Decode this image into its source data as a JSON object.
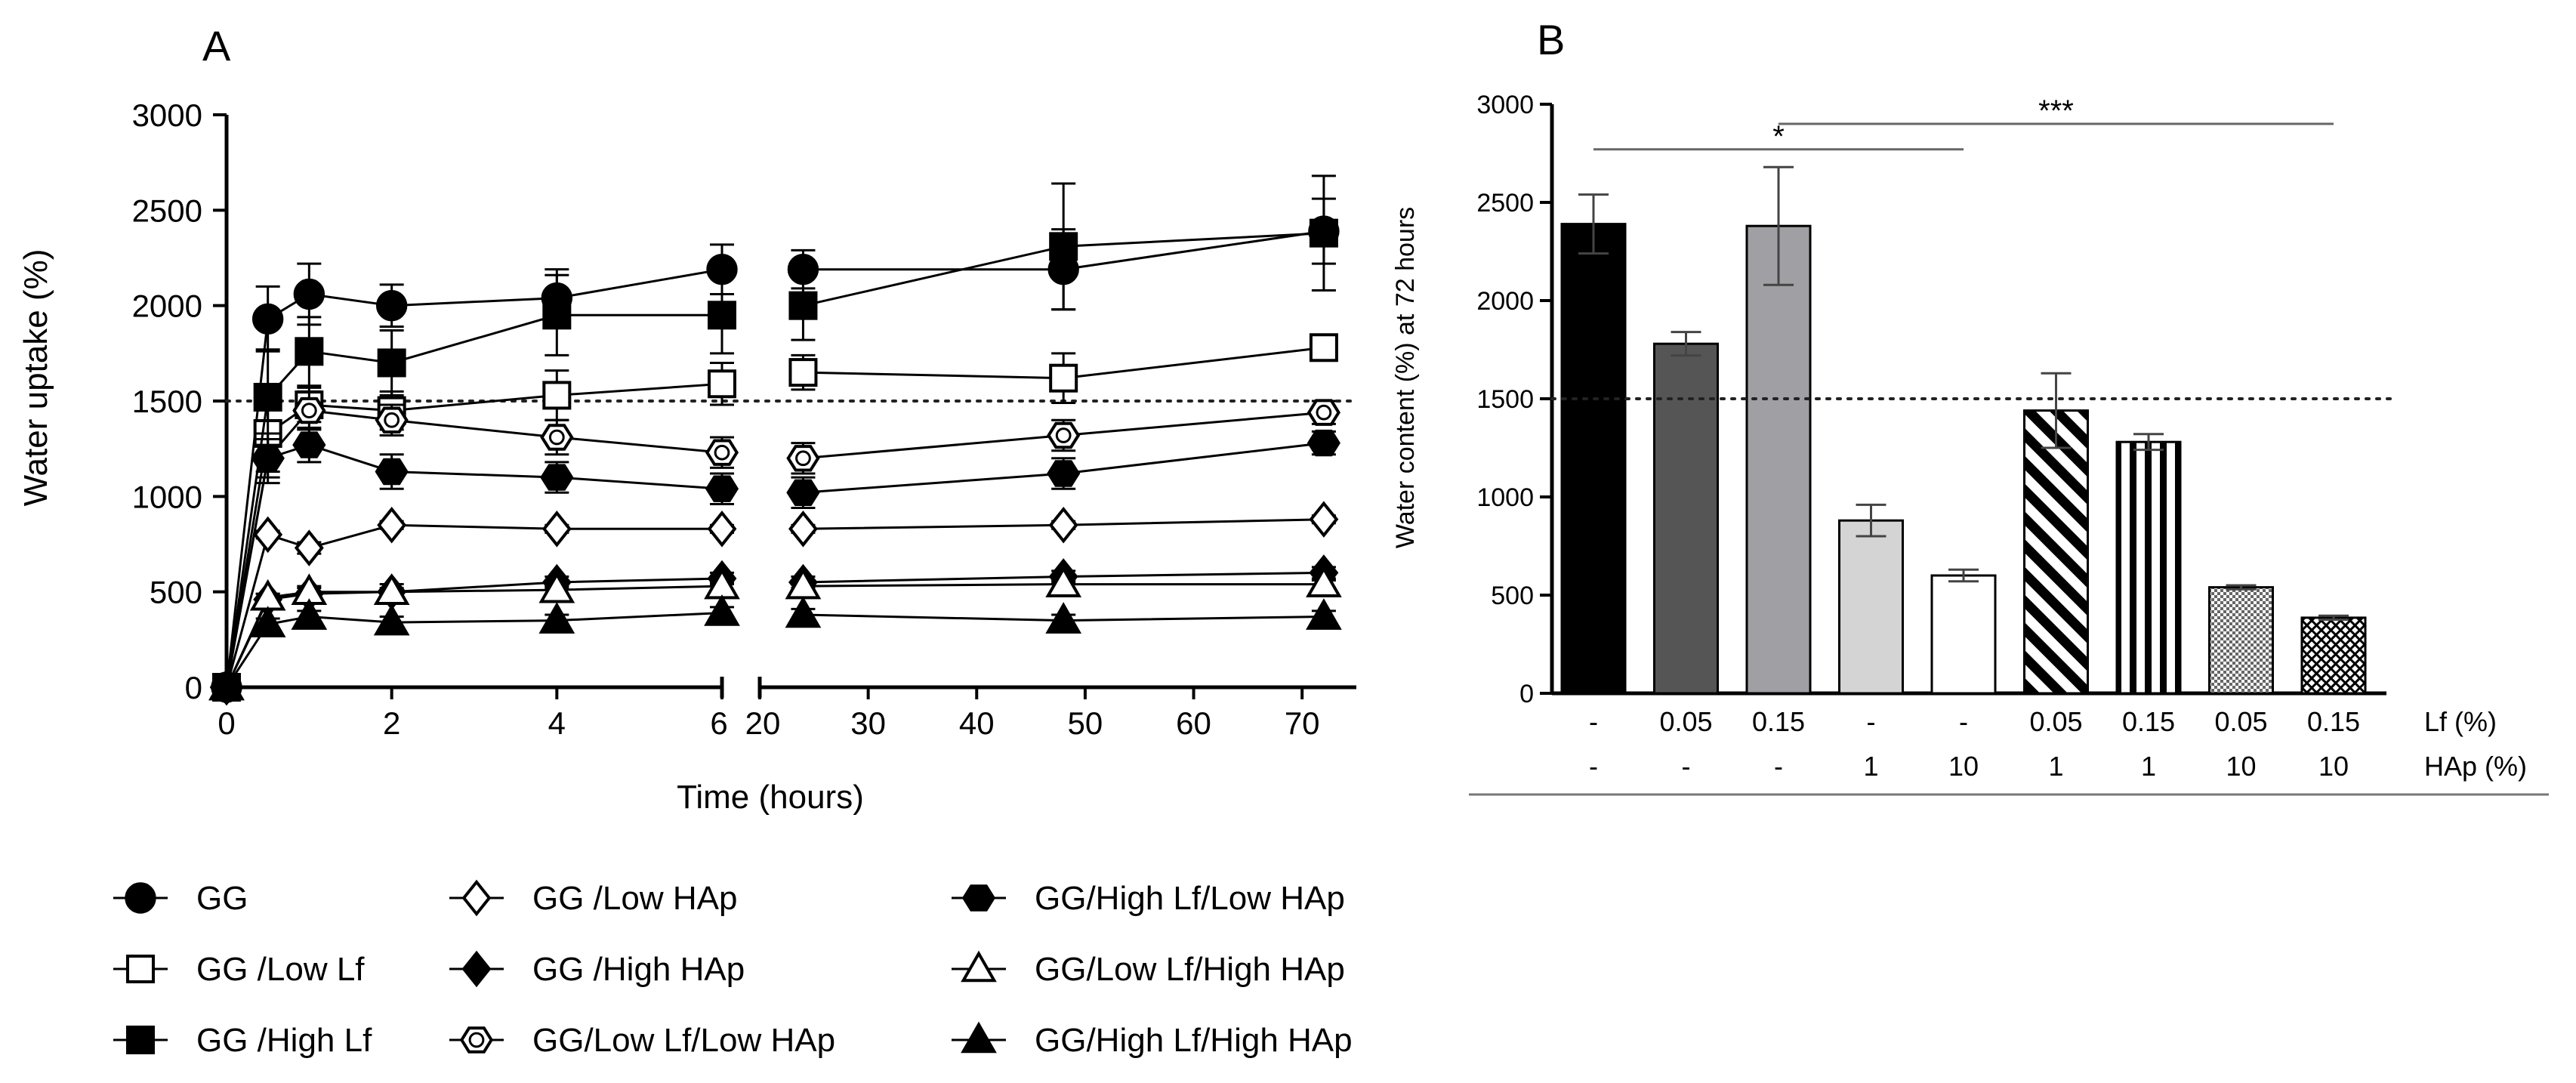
{
  "chart_data": [
    {
      "panel": "A",
      "type": "line",
      "title": "",
      "xlabel": "Time (hours)",
      "ylabel": "Water uptake (%)",
      "ylim": [
        0,
        3000
      ],
      "yticks": [
        0,
        500,
        1000,
        1500,
        2000,
        2500,
        3000
      ],
      "x_segments": [
        {
          "range": [
            0,
            6
          ],
          "ticks": [
            0,
            2,
            4,
            6
          ]
        },
        {
          "range": [
            20,
            75
          ],
          "ticks": [
            20,
            30,
            40,
            50,
            60,
            70
          ]
        }
      ],
      "x_tick_labels": [
        "0",
        "2",
        "4",
        "6",
        "20",
        "30",
        "40",
        "50",
        "60",
        "70"
      ],
      "reference_line": {
        "y": 1500,
        "style": "dotted"
      },
      "x": [
        0,
        0.5,
        1,
        2,
        4,
        6,
        24,
        48,
        72
      ],
      "series": [
        {
          "name": "GG",
          "marker": "circle-filled",
          "values": [
            0,
            1930,
            2060,
            2000,
            2040,
            2190,
            2190,
            2190,
            2390
          ],
          "errors": [
            0,
            170,
            160,
            110,
            150,
            130,
            100,
            210,
            170
          ]
        },
        {
          "name": "GG /Low Lf",
          "marker": "square-open",
          "values": [
            0,
            1330,
            1480,
            1450,
            1530,
            1590,
            1650,
            1620,
            1780
          ],
          "errors": [
            0,
            200,
            90,
            100,
            130,
            110,
            90,
            130,
            40
          ]
        },
        {
          "name": "GG /High Lf",
          "marker": "square-filled",
          "values": [
            0,
            1520,
            1760,
            1700,
            1950,
            1950,
            2000,
            2310,
            2380
          ],
          "errors": [
            0,
            250,
            180,
            170,
            210,
            200,
            180,
            330,
            300
          ]
        },
        {
          "name": "GG /Low HAp",
          "marker": "diamond-open",
          "values": [
            0,
            800,
            730,
            850,
            830,
            830,
            830,
            850,
            880
          ],
          "errors": [
            0,
            20,
            30,
            20,
            20,
            20,
            20,
            20,
            20
          ]
        },
        {
          "name": "GG /High HAp",
          "marker": "diamond-filled",
          "values": [
            0,
            460,
            490,
            500,
            550,
            570,
            550,
            580,
            600
          ],
          "errors": [
            0,
            30,
            40,
            40,
            30,
            30,
            30,
            30,
            30
          ]
        },
        {
          "name": "GG/Low Lf/Low HAp",
          "marker": "hexagon-open",
          "values": [
            0,
            1200,
            1450,
            1400,
            1310,
            1230,
            1200,
            1320,
            1440
          ],
          "errors": [
            0,
            130,
            100,
            80,
            90,
            80,
            80,
            80,
            60
          ]
        },
        {
          "name": "GG/High Lf/Low HAp",
          "marker": "hexagon-filled",
          "values": [
            0,
            1200,
            1270,
            1130,
            1100,
            1040,
            1020,
            1120,
            1280
          ],
          "errors": [
            0,
            100,
            90,
            90,
            80,
            80,
            80,
            80,
            60
          ]
        },
        {
          "name": "GG/Low Lf/High HAp",
          "marker": "triangle-open",
          "values": [
            0,
            470,
            500,
            500,
            510,
            530,
            530,
            540,
            540
          ],
          "errors": [
            0,
            20,
            20,
            20,
            20,
            20,
            20,
            20,
            20
          ]
        },
        {
          "name": "GG/High Lf/High HAp",
          "marker": "triangle-filled",
          "values": [
            0,
            330,
            370,
            340,
            350,
            390,
            380,
            350,
            370
          ],
          "errors": [
            0,
            30,
            30,
            30,
            30,
            30,
            30,
            30,
            30
          ]
        }
      ]
    },
    {
      "panel": "B",
      "type": "bar",
      "ylabel": "Water content (%) at 72 hours",
      "ylim": [
        0,
        3000
      ],
      "yticks": [
        0,
        500,
        1000,
        1500,
        2000,
        2500,
        3000
      ],
      "reference_line": {
        "y": 1500,
        "style": "dotted"
      },
      "categories": [
        "GG",
        "GG /Low Lf",
        "GG /High Lf",
        "GG /Low HAp",
        "GG /High HAp",
        "GG/Low Lf/Low HAp",
        "GG/High Lf/Low HAp",
        "GG/Low Lf/High HAp",
        "GG/High Lf/High HAp"
      ],
      "values": [
        2390,
        1780,
        2380,
        880,
        600,
        1440,
        1280,
        540,
        385
      ],
      "errors": [
        150,
        60,
        300,
        80,
        30,
        190,
        40,
        10,
        10
      ],
      "fills": [
        "black",
        "dark-gray",
        "mid-gray",
        "light-gray",
        "white",
        "diagonal-stripes",
        "vertical-stripes",
        "fine-check",
        "checker"
      ],
      "row_labels": {
        "lf": {
          "title": "Lf (%)",
          "values": [
            "-",
            "0.05",
            "0.15",
            "-",
            "-",
            "0.05",
            "0.15",
            "0.05",
            "0.15"
          ]
        },
        "hap": {
          "title": "HAp (%)",
          "values": [
            "-",
            "-",
            "-",
            "1",
            "10",
            "1",
            "1",
            "10",
            "10"
          ]
        }
      },
      "significance": [
        {
          "label": "*",
          "from_bar": 0,
          "to_bar": 4,
          "y": 2770
        },
        {
          "label": "***",
          "from_bar": 2,
          "to_bar": 8,
          "y": 2900
        }
      ]
    }
  ],
  "panel_labels": {
    "a": "A",
    "b": "B"
  },
  "colors": {
    "ink": "#000000",
    "axis": "#000000",
    "grid_ref": "#222222",
    "bar_dark": "#555555",
    "bar_mid": "#a0a0a4",
    "bar_light": "#d4d4d4"
  }
}
